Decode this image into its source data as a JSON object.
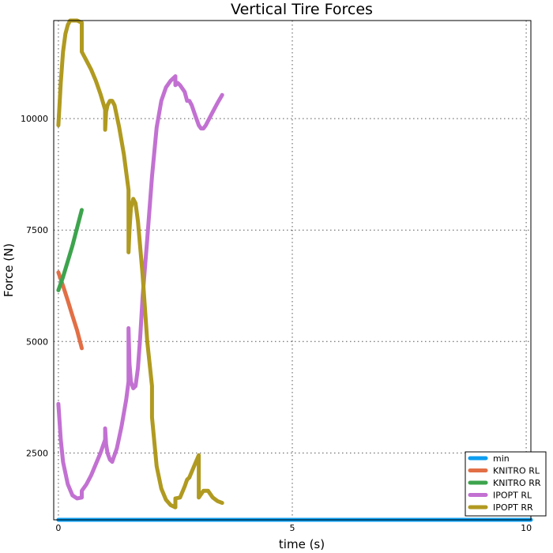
{
  "chart_data": {
    "type": "line",
    "title": "Vertical Tire Forces",
    "xlabel": "time (s)",
    "ylabel": "Force (N)",
    "xlim": [
      -0.1,
      10.1
    ],
    "ylim": [
      1000,
      12200
    ],
    "xticks": [
      0,
      5,
      10
    ],
    "yticks": [
      2500,
      5000,
      7500,
      10000
    ],
    "xtick_labels": [
      "0",
      "5",
      "10"
    ],
    "ytick_labels": [
      "2500",
      "5000",
      "7500",
      "10000"
    ],
    "grid": true,
    "legend_position": "bottom-right",
    "series": [
      {
        "name": "min",
        "color": "#0c9ef1",
        "x": [
          0,
          10.1
        ],
        "y": [
          1000,
          1000
        ]
      },
      {
        "name": "KNITRO RL",
        "color": "#e26f46",
        "x": [
          0,
          0.1,
          0.2,
          0.3,
          0.4,
          0.5
        ],
        "y": [
          6550,
          6250,
          5920,
          5580,
          5250,
          4850
        ]
      },
      {
        "name": "KNITRO RR",
        "color": "#3da44d",
        "x": [
          0,
          0.1,
          0.2,
          0.3,
          0.4,
          0.5
        ],
        "y": [
          6150,
          6450,
          6800,
          7150,
          7550,
          7950
        ]
      },
      {
        "name": "IPOPT RL",
        "color": "#c271d2",
        "x": [
          0,
          0.05,
          0.1,
          0.2,
          0.3,
          0.4,
          0.5,
          0.5,
          0.6,
          0.7,
          0.8,
          0.9,
          1.0,
          1.0,
          1.02,
          1.05,
          1.1,
          1.15,
          1.25,
          1.35,
          1.45,
          1.5,
          1.5,
          1.52,
          1.55,
          1.6,
          1.65,
          1.7,
          1.75,
          1.8,
          1.9,
          2.0,
          2.1,
          2.2,
          2.3,
          2.4,
          2.5,
          2.5,
          2.55,
          2.6,
          2.7,
          2.75,
          2.8,
          2.85,
          2.9,
          2.95,
          3.0,
          3.05,
          3.1,
          3.15,
          3.2,
          3.3,
          3.4,
          3.5
        ],
        "y": [
          3600,
          2800,
          2300,
          1800,
          1550,
          1480,
          1500,
          1650,
          1800,
          2000,
          2250,
          2500,
          2800,
          3050,
          2700,
          2500,
          2350,
          2300,
          2600,
          3100,
          3700,
          4100,
          5300,
          4500,
          4100,
          3950,
          4000,
          4400,
          5100,
          6000,
          7300,
          8700,
          9800,
          10400,
          10700,
          10850,
          10950,
          10750,
          10800,
          10750,
          10600,
          10400,
          10400,
          10300,
          10150,
          10000,
          9850,
          9780,
          9780,
          9850,
          9950,
          10150,
          10350,
          10530
        ]
      },
      {
        "name": "IPOPT RR",
        "color": "#b09a20",
        "x": [
          0,
          0.05,
          0.1,
          0.15,
          0.2,
          0.25,
          0.3,
          0.35,
          0.4,
          0.5,
          0.5,
          0.6,
          0.7,
          0.8,
          0.9,
          1.0,
          1.0,
          1.02,
          1.05,
          1.1,
          1.15,
          1.2,
          1.3,
          1.4,
          1.5,
          1.5,
          1.52,
          1.55,
          1.6,
          1.65,
          1.7,
          1.8,
          1.9,
          2.0,
          2.0,
          2.1,
          2.2,
          2.3,
          2.4,
          2.5,
          2.5,
          2.6,
          2.7,
          2.75,
          2.8,
          2.9,
          3.0,
          3.0,
          3.1,
          3.2,
          3.3,
          3.4,
          3.5
        ],
        "y": [
          9850,
          10800,
          11500,
          11900,
          12100,
          12200,
          12200,
          12200,
          12200,
          12150,
          11500,
          11300,
          11100,
          10850,
          10550,
          10200,
          9750,
          10150,
          10300,
          10400,
          10400,
          10300,
          9800,
          9200,
          8400,
          7000,
          7500,
          8000,
          8200,
          8100,
          7700,
          6500,
          5000,
          4000,
          3300,
          2200,
          1700,
          1450,
          1330,
          1280,
          1480,
          1500,
          1750,
          1900,
          1950,
          2200,
          2450,
          1500,
          1650,
          1650,
          1500,
          1420,
          1380
        ]
      }
    ]
  }
}
